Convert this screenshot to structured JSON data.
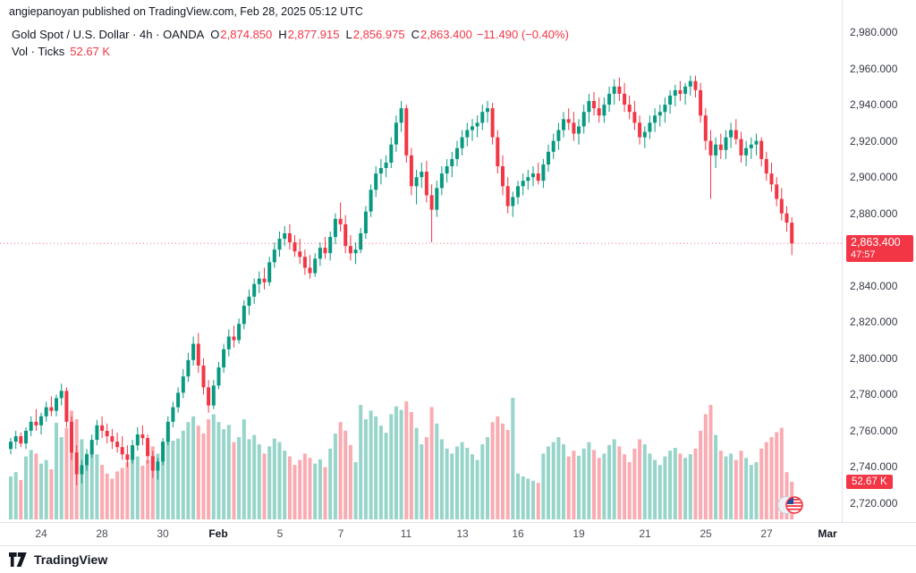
{
  "attribution": "angiepanoyan published on TradingView.com, Feb 28, 2025 05:12 UTC",
  "legend": {
    "symbol_line": "Gold Spot / U.S. Dollar · 4h · OANDA",
    "o_label": "O",
    "o_value": "2,874.850",
    "h_label": "H",
    "h_value": "2,877.915",
    "l_label": "L",
    "l_value": "2,856.975",
    "c_label": "C",
    "c_value": "2,863.400",
    "change": "−11.490 (−0.40%)",
    "vol_label": "Vol · Ticks",
    "vol_value": "52.67 K"
  },
  "price_axis": {
    "ticks": [
      {
        "label": "2,980.000",
        "value": 2980
      },
      {
        "label": "2,960.000",
        "value": 2960
      },
      {
        "label": "2,940.000",
        "value": 2940
      },
      {
        "label": "2,920.000",
        "value": 2920
      },
      {
        "label": "2,900.000",
        "value": 2900
      },
      {
        "label": "2,880.000",
        "value": 2880
      },
      {
        "label": "2,840.000",
        "value": 2840
      },
      {
        "label": "2,820.000",
        "value": 2820
      },
      {
        "label": "2,800.000",
        "value": 2800
      },
      {
        "label": "2,780.000",
        "value": 2780
      },
      {
        "label": "2,760.000",
        "value": 2760
      },
      {
        "label": "2,740.000",
        "value": 2740
      },
      {
        "label": "2,720.000",
        "value": 2720
      }
    ],
    "last_price_label": "2,863.400",
    "countdown": "47:57",
    "vol_badge": "52.67 K"
  },
  "time_axis": {
    "labels": [
      {
        "text": "24",
        "idx": 6,
        "bold": false
      },
      {
        "text": "28",
        "idx": 18,
        "bold": false
      },
      {
        "text": "30",
        "idx": 30,
        "bold": false
      },
      {
        "text": "Feb",
        "idx": 41,
        "bold": true
      },
      {
        "text": "5",
        "idx": 53,
        "bold": false
      },
      {
        "text": "7",
        "idx": 65,
        "bold": false
      },
      {
        "text": "11",
        "idx": 78,
        "bold": false
      },
      {
        "text": "13",
        "idx": 89,
        "bold": false
      },
      {
        "text": "16",
        "idx": 100,
        "bold": false
      },
      {
        "text": "19",
        "idx": 112,
        "bold": false
      },
      {
        "text": "21",
        "idx": 125,
        "bold": false
      },
      {
        "text": "25",
        "idx": 137,
        "bold": false
      },
      {
        "text": "27",
        "idx": 149,
        "bold": false
      },
      {
        "text": "Mar",
        "idx": 161,
        "bold": true
      }
    ]
  },
  "footer": {
    "brand": "TradingView"
  },
  "colors": {
    "up": "#089981",
    "down": "#F23645",
    "axis_text": "#363A45",
    "separator": "#E0E3EB",
    "badge_bg": "#F23645",
    "badge_text": "#FFFFFF"
  },
  "chart_data": {
    "type": "candlestick",
    "title": "Gold Spot / U.S. Dollar, 4h, OANDA",
    "symbol": "Gold Spot / U.S. Dollar",
    "interval": "4h",
    "exchange": "OANDA",
    "ohlc_current": {
      "open": 2874.85,
      "high": 2877.915,
      "low": 2856.975,
      "close": 2863.4,
      "change": -11.49,
      "change_pct": -0.4
    },
    "volume_current_k": 52.67,
    "volume_unit": "K ticks",
    "last_price": 2863.4,
    "y_axis": {
      "visible_min": 2710,
      "visible_max": 2998,
      "tick_step": 20,
      "first_tick": 2720,
      "last_tick": 2980
    },
    "x_axis": {
      "start_label": "24 (Jan)",
      "end_label": "Mar",
      "grid": false,
      "legend_position": "top-left"
    },
    "candles_format": [
      "open",
      "high",
      "low",
      "close",
      "volume_k"
    ],
    "candles": [
      [
        2750,
        2756,
        2747,
        2754,
        60
      ],
      [
        2754,
        2760,
        2750,
        2757,
        66
      ],
      [
        2757,
        2759,
        2751,
        2753,
        55
      ],
      [
        2753,
        2762,
        2750,
        2760,
        88
      ],
      [
        2760,
        2768,
        2757,
        2765,
        97
      ],
      [
        2765,
        2772,
        2760,
        2763,
        92
      ],
      [
        2763,
        2770,
        2758,
        2768,
        78
      ],
      [
        2768,
        2776,
        2765,
        2773,
        83
      ],
      [
        2773,
        2779,
        2768,
        2771,
        70
      ],
      [
        2771,
        2780,
        2768,
        2778,
        135
      ],
      [
        2778,
        2786,
        2774,
        2782,
        115
      ],
      [
        2782,
        2784,
        2762,
        2765,
        128
      ],
      [
        2765,
        2768,
        2744,
        2748,
        152
      ],
      [
        2748,
        2752,
        2730,
        2736,
        140
      ],
      [
        2736,
        2744,
        2731,
        2741,
        112
      ],
      [
        2741,
        2750,
        2738,
        2747,
        92
      ],
      [
        2747,
        2758,
        2745,
        2755,
        97
      ],
      [
        2755,
        2766,
        2752,
        2763,
        91
      ],
      [
        2763,
        2768,
        2756,
        2760,
        76
      ],
      [
        2760,
        2764,
        2753,
        2757,
        64
      ],
      [
        2757,
        2761,
        2750,
        2754,
        57
      ],
      [
        2754,
        2759,
        2748,
        2751,
        67
      ],
      [
        2751,
        2757,
        2744,
        2747,
        72
      ],
      [
        2747,
        2752,
        2740,
        2744,
        80
      ],
      [
        2744,
        2755,
        2742,
        2752,
        99
      ],
      [
        2752,
        2762,
        2749,
        2758,
        88
      ],
      [
        2758,
        2763,
        2752,
        2756,
        75
      ],
      [
        2756,
        2758,
        2742,
        2746,
        83
      ],
      [
        2746,
        2749,
        2734,
        2738,
        102
      ],
      [
        2738,
        2745,
        2733,
        2743,
        92
      ],
      [
        2743,
        2756,
        2741,
        2754,
        105
      ],
      [
        2754,
        2768,
        2752,
        2765,
        118
      ],
      [
        2765,
        2776,
        2762,
        2773,
        110
      ],
      [
        2773,
        2784,
        2770,
        2781,
        113
      ],
      [
        2781,
        2794,
        2778,
        2790,
        124
      ],
      [
        2790,
        2803,
        2787,
        2799,
        136
      ],
      [
        2799,
        2812,
        2796,
        2808,
        144
      ],
      [
        2808,
        2814,
        2792,
        2796,
        131
      ],
      [
        2796,
        2800,
        2780,
        2784,
        120
      ],
      [
        2784,
        2788,
        2770,
        2774,
        140
      ],
      [
        2774,
        2788,
        2772,
        2785,
        147
      ],
      [
        2785,
        2798,
        2783,
        2795,
        136
      ],
      [
        2795,
        2808,
        2792,
        2805,
        126
      ],
      [
        2805,
        2816,
        2801,
        2812,
        132
      ],
      [
        2812,
        2818,
        2806,
        2810,
        108
      ],
      [
        2810,
        2822,
        2808,
        2819,
        115
      ],
      [
        2819,
        2832,
        2816,
        2829,
        140
      ],
      [
        2829,
        2838,
        2824,
        2834,
        112
      ],
      [
        2834,
        2844,
        2830,
        2841,
        118
      ],
      [
        2841,
        2848,
        2836,
        2844,
        105
      ],
      [
        2844,
        2850,
        2838,
        2842,
        92
      ],
      [
        2842,
        2856,
        2840,
        2853,
        102
      ],
      [
        2853,
        2864,
        2850,
        2860,
        113
      ],
      [
        2860,
        2870,
        2856,
        2866,
        108
      ],
      [
        2866,
        2873,
        2862,
        2869,
        96
      ],
      [
        2869,
        2874,
        2860,
        2864,
        88
      ],
      [
        2864,
        2868,
        2856,
        2859,
        76
      ],
      [
        2859,
        2866,
        2852,
        2856,
        83
      ],
      [
        2856,
        2860,
        2846,
        2850,
        92
      ],
      [
        2850,
        2857,
        2844,
        2847,
        86
      ],
      [
        2847,
        2858,
        2845,
        2855,
        78
      ],
      [
        2855,
        2864,
        2851,
        2861,
        84
      ],
      [
        2861,
        2867,
        2855,
        2858,
        73
      ],
      [
        2858,
        2870,
        2854,
        2867,
        99
      ],
      [
        2867,
        2880,
        2863,
        2877,
        120
      ],
      [
        2877,
        2886,
        2870,
        2874,
        136
      ],
      [
        2874,
        2879,
        2858,
        2862,
        124
      ],
      [
        2862,
        2868,
        2854,
        2858,
        104
      ],
      [
        2858,
        2864,
        2852,
        2860,
        80
      ],
      [
        2860,
        2872,
        2858,
        2869,
        160
      ],
      [
        2869,
        2884,
        2866,
        2881,
        140
      ],
      [
        2881,
        2896,
        2878,
        2893,
        152
      ],
      [
        2893,
        2906,
        2889,
        2902,
        144
      ],
      [
        2902,
        2910,
        2896,
        2905,
        131
      ],
      [
        2905,
        2912,
        2900,
        2908,
        121
      ],
      [
        2908,
        2922,
        2905,
        2918,
        147
      ],
      [
        2918,
        2934,
        2914,
        2930,
        158
      ],
      [
        2930,
        2942,
        2925,
        2938,
        153
      ],
      [
        2938,
        2940,
        2908,
        2912,
        165
      ],
      [
        2912,
        2916,
        2890,
        2895,
        150
      ],
      [
        2895,
        2904,
        2885,
        2900,
        128
      ],
      [
        2900,
        2908,
        2894,
        2903,
        105
      ],
      [
        2903,
        2909,
        2886,
        2890,
        115
      ],
      [
        2890,
        2896,
        2864,
        2882,
        157
      ],
      [
        2882,
        2898,
        2878,
        2894,
        134
      ],
      [
        2894,
        2906,
        2890,
        2902,
        112
      ],
      [
        2902,
        2910,
        2897,
        2906,
        99
      ],
      [
        2906,
        2914,
        2900,
        2910,
        92
      ],
      [
        2910,
        2920,
        2906,
        2916,
        102
      ],
      [
        2916,
        2926,
        2912,
        2922,
        108
      ],
      [
        2922,
        2930,
        2917,
        2926,
        100
      ],
      [
        2926,
        2932,
        2920,
        2928,
        91
      ],
      [
        2928,
        2934,
        2922,
        2930,
        83
      ],
      [
        2930,
        2940,
        2926,
        2936,
        105
      ],
      [
        2936,
        2942,
        2930,
        2938,
        115
      ],
      [
        2938,
        2941,
        2918,
        2922,
        136
      ],
      [
        2922,
        2926,
        2902,
        2906,
        144
      ],
      [
        2906,
        2912,
        2890,
        2895,
        134
      ],
      [
        2895,
        2900,
        2880,
        2884,
        125
      ],
      [
        2884,
        2892,
        2878,
        2889,
        170
      ],
      [
        2889,
        2898,
        2885,
        2895,
        64
      ],
      [
        2895,
        2902,
        2890,
        2898,
        60
      ],
      [
        2898,
        2904,
        2893,
        2900,
        57
      ],
      [
        2900,
        2906,
        2895,
        2902,
        54
      ],
      [
        2902,
        2908,
        2896,
        2898,
        51
      ],
      [
        2898,
        2910,
        2894,
        2907,
        92
      ],
      [
        2907,
        2918,
        2903,
        2914,
        102
      ],
      [
        2914,
        2924,
        2910,
        2920,
        108
      ],
      [
        2920,
        2930,
        2915,
        2926,
        115
      ],
      [
        2926,
        2936,
        2922,
        2932,
        105
      ],
      [
        2932,
        2938,
        2926,
        2930,
        88
      ],
      [
        2930,
        2936,
        2920,
        2924,
        96
      ],
      [
        2924,
        2932,
        2918,
        2928,
        89
      ],
      [
        2928,
        2940,
        2924,
        2936,
        99
      ],
      [
        2936,
        2946,
        2930,
        2942,
        108
      ],
      [
        2942,
        2947,
        2934,
        2938,
        97
      ],
      [
        2938,
        2944,
        2930,
        2934,
        86
      ],
      [
        2934,
        2944,
        2930,
        2940,
        92
      ],
      [
        2940,
        2950,
        2936,
        2946,
        104
      ],
      [
        2946,
        2954,
        2940,
        2950,
        112
      ],
      [
        2950,
        2955,
        2942,
        2946,
        102
      ],
      [
        2946,
        2952,
        2936,
        2940,
        91
      ],
      [
        2940,
        2945,
        2932,
        2936,
        80
      ],
      [
        2936,
        2942,
        2926,
        2930,
        99
      ],
      [
        2930,
        2934,
        2918,
        2922,
        112
      ],
      [
        2922,
        2928,
        2916,
        2925,
        105
      ],
      [
        2925,
        2934,
        2921,
        2930,
        92
      ],
      [
        2930,
        2938,
        2925,
        2934,
        83
      ],
      [
        2934,
        2940,
        2928,
        2936,
        76
      ],
      [
        2936,
        2944,
        2930,
        2940,
        88
      ],
      [
        2940,
        2948,
        2935,
        2945,
        96
      ],
      [
        2945,
        2951,
        2939,
        2948,
        100
      ],
      [
        2948,
        2953,
        2942,
        2946,
        92
      ],
      [
        2946,
        2952,
        2940,
        2950,
        86
      ],
      [
        2950,
        2956,
        2945,
        2953,
        91
      ],
      [
        2953,
        2956,
        2944,
        2948,
        99
      ],
      [
        2948,
        2952,
        2930,
        2934,
        124
      ],
      [
        2934,
        2938,
        2915,
        2920,
        147
      ],
      [
        2920,
        2926,
        2888,
        2912,
        160
      ],
      [
        2912,
        2922,
        2905,
        2918,
        118
      ],
      [
        2918,
        2924,
        2910,
        2915,
        96
      ],
      [
        2915,
        2926,
        2910,
        2922,
        88
      ],
      [
        2922,
        2930,
        2916,
        2926,
        92
      ],
      [
        2926,
        2932,
        2918,
        2921,
        83
      ],
      [
        2921,
        2925,
        2908,
        2912,
        96
      ],
      [
        2912,
        2920,
        2906,
        2916,
        86
      ],
      [
        2916,
        2922,
        2910,
        2918,
        76
      ],
      [
        2918,
        2924,
        2912,
        2920,
        80
      ],
      [
        2920,
        2922,
        2906,
        2910,
        99
      ],
      [
        2910,
        2914,
        2898,
        2902,
        108
      ],
      [
        2902,
        2908,
        2892,
        2896,
        115
      ],
      [
        2896,
        2900,
        2884,
        2888,
        122
      ],
      [
        2888,
        2894,
        2876,
        2880,
        128
      ],
      [
        2880,
        2884,
        2870,
        2874.85,
        66
      ],
      [
        2874.85,
        2877.915,
        2856.975,
        2863.4,
        52.67
      ]
    ]
  }
}
